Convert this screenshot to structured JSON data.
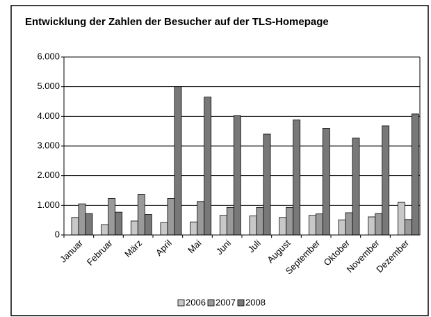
{
  "chart_data": {
    "type": "bar",
    "title": "Entwicklung der Zahlen der Besucher auf der TLS-Homepage",
    "categories": [
      "Januar",
      "Februar",
      "März",
      "April",
      "Mai",
      "Juni",
      "Juli",
      "August",
      "September",
      "Oktober",
      "November",
      "Dezember"
    ],
    "series": [
      {
        "name": "2006",
        "color": "#c8c8c8",
        "values": [
          590,
          350,
          470,
          420,
          440,
          660,
          640,
          590,
          660,
          510,
          610,
          1100
        ]
      },
      {
        "name": "2007",
        "color": "#9a9a9a",
        "values": [
          1050,
          1230,
          1370,
          1230,
          1130,
          930,
          930,
          930,
          710,
          750,
          720,
          520
        ]
      },
      {
        "name": "2008",
        "color": "#787878",
        "values": [
          720,
          770,
          690,
          5000,
          4650,
          4020,
          3400,
          3880,
          3600,
          3270,
          3680,
          4080
        ]
      }
    ],
    "ylim": [
      0,
      6000
    ],
    "yticks": [
      0,
      {
        "value": 1000,
        "label": "1.000"
      },
      {
        "value": 2000,
        "label": "2.000"
      },
      {
        "value": 3000,
        "label": "3.000"
      },
      {
        "value": 4000,
        "label": "4.000"
      },
      {
        "value": 5000,
        "label": "5.000"
      },
      {
        "value": 6000,
        "label": "6.000"
      }
    ],
    "grid": true,
    "legend": "bottom"
  }
}
